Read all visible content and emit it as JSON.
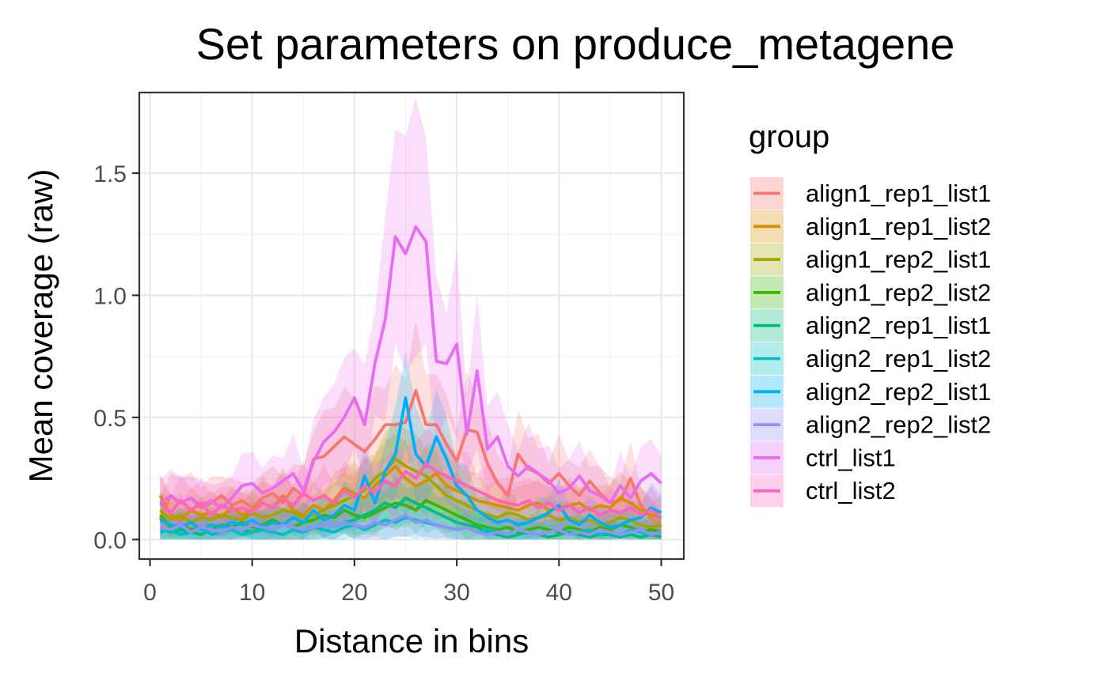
{
  "chart_data": {
    "type": "line",
    "title": "Set parameters on produce_metagene",
    "xlabel": "Distance in bins",
    "ylabel": "Mean coverage (raw)",
    "xlim": [
      0,
      50
    ],
    "ylim": [
      -0.08,
      1.83
    ],
    "x_ticks": [
      0,
      10,
      20,
      30,
      40,
      50
    ],
    "y_ticks": [
      0.0,
      0.5,
      1.0,
      1.5
    ],
    "y_tick_labels": [
      "0.0",
      "0.5",
      "1.0",
      "1.5"
    ],
    "grid": true,
    "legend_title": "group",
    "legend_position": "right",
    "x": [
      1,
      2,
      3,
      4,
      5,
      6,
      7,
      8,
      9,
      10,
      11,
      12,
      13,
      14,
      15,
      16,
      17,
      18,
      19,
      20,
      21,
      22,
      23,
      24,
      25,
      26,
      27,
      28,
      29,
      30,
      31,
      32,
      33,
      34,
      35,
      36,
      37,
      38,
      39,
      40,
      41,
      42,
      43,
      44,
      45,
      46,
      47,
      48,
      49,
      50
    ],
    "series": [
      {
        "name": "align1_rep1_list1",
        "color": "#F8766D",
        "values": [
          0.08,
          0.18,
          0.15,
          0.17,
          0.13,
          0.15,
          0.18,
          0.14,
          0.16,
          0.13,
          0.17,
          0.19,
          0.15,
          0.21,
          0.18,
          0.33,
          0.34,
          0.38,
          0.42,
          0.39,
          0.36,
          0.41,
          0.47,
          0.47,
          0.48,
          0.61,
          0.47,
          0.47,
          0.39,
          0.32,
          0.45,
          0.44,
          0.31,
          0.23,
          0.18,
          0.35,
          0.29,
          0.27,
          0.23,
          0.27,
          0.22,
          0.18,
          0.24,
          0.19,
          0.15,
          0.16,
          0.25,
          0.14,
          0.09,
          0.05
        ]
      },
      {
        "name": "align1_rep1_list2",
        "color": "#D89000",
        "values": [
          0.18,
          0.1,
          0.08,
          0.12,
          0.1,
          0.11,
          0.09,
          0.13,
          0.1,
          0.12,
          0.15,
          0.13,
          0.18,
          0.12,
          0.1,
          0.14,
          0.12,
          0.16,
          0.21,
          0.19,
          0.17,
          0.22,
          0.26,
          0.3,
          0.25,
          0.22,
          0.24,
          0.27,
          0.22,
          0.2,
          0.18,
          0.16,
          0.15,
          0.14,
          0.13,
          0.12,
          0.14,
          0.15,
          0.12,
          0.13,
          0.14,
          0.15,
          0.12,
          0.14,
          0.13,
          0.17,
          0.15,
          0.12,
          0.1,
          0.09
        ]
      },
      {
        "name": "align1_rep2_list1",
        "color": "#A3A500",
        "values": [
          0.12,
          0.08,
          0.1,
          0.07,
          0.09,
          0.08,
          0.1,
          0.09,
          0.08,
          0.11,
          0.09,
          0.1,
          0.12,
          0.11,
          0.09,
          0.1,
          0.12,
          0.14,
          0.16,
          0.18,
          0.2,
          0.25,
          0.28,
          0.33,
          0.3,
          0.28,
          0.26,
          0.22,
          0.18,
          0.16,
          0.14,
          0.12,
          0.1,
          0.09,
          0.11,
          0.1,
          0.08,
          0.09,
          0.1,
          0.08,
          0.09,
          0.07,
          0.08,
          0.06,
          0.07,
          0.09,
          0.08,
          0.06,
          0.05,
          0.06
        ]
      },
      {
        "name": "align1_rep2_list2",
        "color": "#39B600",
        "values": [
          0.1,
          0.05,
          0.06,
          0.04,
          0.05,
          0.04,
          0.06,
          0.05,
          0.07,
          0.05,
          0.06,
          0.08,
          0.06,
          0.05,
          0.07,
          0.08,
          0.1,
          0.09,
          0.12,
          0.1,
          0.09,
          0.11,
          0.13,
          0.15,
          0.14,
          0.12,
          0.16,
          0.14,
          0.12,
          0.1,
          0.08,
          0.06,
          0.05,
          0.04,
          0.05,
          0.03,
          0.04,
          0.05,
          0.04,
          0.03,
          0.05,
          0.04,
          0.03,
          0.05,
          0.04,
          0.06,
          0.05,
          0.03,
          0.04,
          0.03
        ]
      },
      {
        "name": "align2_rep1_list1",
        "color": "#00BF7D",
        "values": [
          0.05,
          0.03,
          0.04,
          0.03,
          0.02,
          0.04,
          0.03,
          0.05,
          0.04,
          0.03,
          0.05,
          0.04,
          0.06,
          0.05,
          0.04,
          0.05,
          0.06,
          0.05,
          0.07,
          0.08,
          0.1,
          0.12,
          0.15,
          0.13,
          0.17,
          0.15,
          0.13,
          0.11,
          0.09,
          0.07,
          0.06,
          0.05,
          0.03,
          0.02,
          0.01,
          0.02,
          0.03,
          0.02,
          0.01,
          0.02,
          0.03,
          0.02,
          0.01,
          0.02,
          0.02,
          0.01,
          0.02,
          0.01,
          0.02,
          0.01
        ]
      },
      {
        "name": "align2_rep1_list2",
        "color": "#00BFC4",
        "values": [
          0.03,
          0.04,
          0.02,
          0.03,
          0.05,
          0.02,
          0.03,
          0.04,
          0.02,
          0.03,
          0.04,
          0.03,
          0.02,
          0.04,
          0.03,
          0.05,
          0.04,
          0.03,
          0.05,
          0.06,
          0.04,
          0.06,
          0.08,
          0.07,
          0.09,
          0.08,
          0.07,
          0.06,
          0.05,
          0.04,
          0.05,
          0.03,
          0.04,
          0.03,
          0.02,
          0.04,
          0.03,
          0.02,
          0.03,
          0.04,
          0.02,
          0.03,
          0.04,
          0.02,
          0.03,
          0.02,
          0.04,
          0.03,
          0.02,
          0.03
        ]
      },
      {
        "name": "align2_rep2_list1",
        "color": "#00B0F6",
        "values": [
          0.08,
          0.06,
          0.05,
          0.07,
          0.04,
          0.06,
          0.05,
          0.07,
          0.06,
          0.08,
          0.05,
          0.07,
          0.06,
          0.09,
          0.07,
          0.12,
          0.08,
          0.1,
          0.14,
          0.12,
          0.26,
          0.15,
          0.28,
          0.35,
          0.58,
          0.35,
          0.3,
          0.42,
          0.33,
          0.22,
          0.18,
          0.12,
          0.09,
          0.07,
          0.08,
          0.06,
          0.07,
          0.09,
          0.11,
          0.14,
          0.08,
          0.06,
          0.1,
          0.07,
          0.05,
          0.06,
          0.08,
          0.09,
          0.13,
          0.11
        ]
      },
      {
        "name": "align2_rep2_list2",
        "color": "#9590FF",
        "values": [
          0.05,
          0.04,
          0.06,
          0.03,
          0.05,
          0.04,
          0.03,
          0.05,
          0.04,
          0.06,
          0.05,
          0.04,
          0.06,
          0.05,
          0.04,
          0.05,
          0.06,
          0.05,
          0.07,
          0.06,
          0.05,
          0.07,
          0.06,
          0.08,
          0.1,
          0.07,
          0.08,
          0.06,
          0.05,
          0.04,
          0.05,
          0.03,
          0.02,
          0.03,
          0.02,
          0.04,
          0.03,
          0.02,
          0.03,
          0.04,
          0.02,
          0.03,
          0.02,
          0.04,
          0.03,
          0.02,
          0.03,
          0.04,
          0.02,
          0.03
        ]
      },
      {
        "name": "ctrl_list1",
        "color": "#E76BF3",
        "values": [
          0.15,
          0.18,
          0.15,
          0.17,
          0.14,
          0.16,
          0.13,
          0.17,
          0.22,
          0.23,
          0.19,
          0.21,
          0.24,
          0.27,
          0.2,
          0.32,
          0.4,
          0.44,
          0.5,
          0.58,
          0.47,
          0.72,
          0.9,
          1.24,
          1.17,
          1.28,
          1.22,
          0.73,
          0.72,
          0.8,
          0.43,
          0.69,
          0.37,
          0.42,
          0.3,
          0.26,
          0.3,
          0.27,
          0.24,
          0.19,
          0.21,
          0.26,
          0.2,
          0.18,
          0.15,
          0.22,
          0.17,
          0.24,
          0.27,
          0.23
        ]
      },
      {
        "name": "ctrl_list2",
        "color": "#FF62BC",
        "values": [
          0.15,
          0.11,
          0.16,
          0.12,
          0.15,
          0.1,
          0.14,
          0.12,
          0.13,
          0.11,
          0.15,
          0.13,
          0.17,
          0.14,
          0.19,
          0.16,
          0.18,
          0.15,
          0.2,
          0.17,
          0.22,
          0.19,
          0.24,
          0.22,
          0.28,
          0.25,
          0.31,
          0.28,
          0.26,
          0.24,
          0.22,
          0.2,
          0.18,
          0.16,
          0.15,
          0.14,
          0.16,
          0.13,
          0.15,
          0.12,
          0.14,
          0.11,
          0.13,
          0.1,
          0.12,
          0.11,
          0.13,
          0.1,
          0.12,
          0.09
        ]
      }
    ]
  }
}
